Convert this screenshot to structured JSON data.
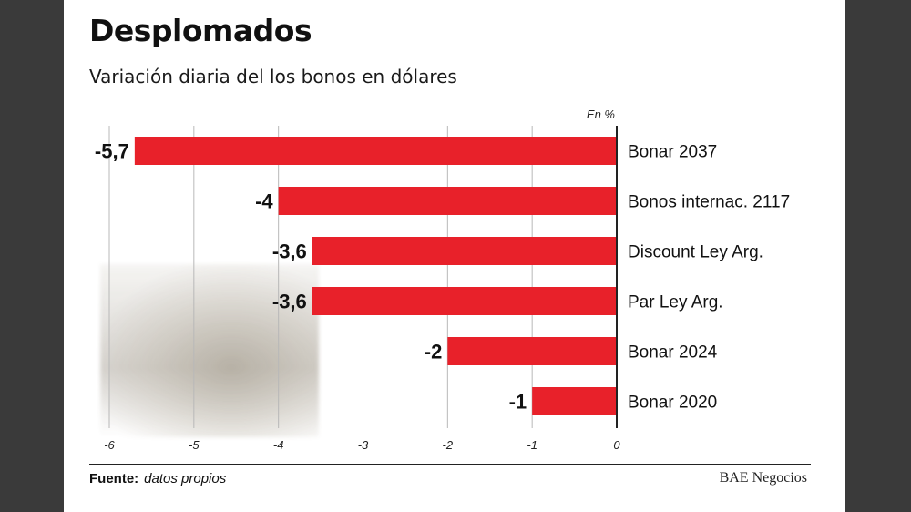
{
  "header": {
    "title": "Desplomados",
    "subtitle": "Variación diaria del los bonos en dólares"
  },
  "footer": {
    "source_label": "Fuente:",
    "source_value": "datos propios",
    "brand": "BAE Negocios"
  },
  "colors": {
    "bar": "#e8212a",
    "gridline": "#b8b8b8",
    "axis": "#222222",
    "background": "#ffffff",
    "frame": "#3a3a3a"
  },
  "chart_data": {
    "type": "bar",
    "orientation": "horizontal",
    "unit_label": "En %",
    "categories": [
      "Bonar 2037",
      "Bonos internac. 2117",
      "Discount Ley Arg.",
      "Par Ley Arg.",
      "Bonar 2024",
      "Bonar 2020"
    ],
    "values": [
      -5.7,
      -4,
      -3.6,
      -3.6,
      -2,
      -1
    ],
    "value_labels": [
      "-5,7",
      "-4",
      "-3,6",
      "-3,6",
      "-2",
      "-1"
    ],
    "xlim": [
      -6,
      0
    ],
    "x_ticks": [
      -6,
      -5,
      -4,
      -3,
      -2,
      -1,
      0
    ],
    "grid": true
  }
}
